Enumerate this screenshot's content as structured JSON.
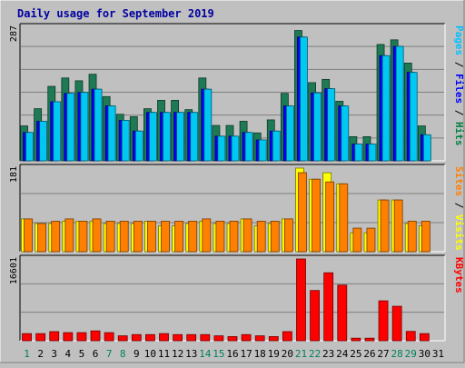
{
  "chart_data": [
    {
      "type": "bar",
      "title": "Daily usage for September 2019",
      "panel": "hits-files-pages",
      "ymax_label": "287",
      "ylim": [
        0,
        287
      ],
      "legend": {
        "side": "right",
        "items": [
          {
            "label": "Pages",
            "color": "#00c0ff"
          },
          {
            "label": "Files",
            "color": "#0000ff"
          },
          {
            "label": "Hits",
            "color": "#008040"
          }
        ],
        "separator": " / "
      },
      "categories": [
        "1",
        "2",
        "3",
        "4",
        "5",
        "6",
        "7",
        "8",
        "9",
        "10",
        "11",
        "12",
        "13",
        "14",
        "15",
        "16",
        "17",
        "18",
        "19",
        "20",
        "21",
        "22",
        "23",
        "24",
        "25",
        "26",
        "27",
        "28",
        "29",
        "30",
        "31"
      ],
      "series": [
        {
          "name": "Hits",
          "color": "#1e7a55",
          "values": [
            75,
            112,
            160,
            178,
            172,
            186,
            138,
            100,
            95,
            112,
            130,
            130,
            110,
            178,
            76,
            76,
            85,
            60,
            88,
            145,
            280,
            168,
            175,
            128,
            52,
            52,
            250,
            260,
            210,
            75,
            0
          ]
        },
        {
          "name": "Files",
          "color": "#0000ff",
          "values": [
            61,
            85,
            127,
            145,
            147,
            154,
            118,
            87,
            64,
            104,
            104,
            104,
            104,
            154,
            53,
            53,
            61,
            45,
            64,
            118,
            266,
            146,
            155,
            118,
            36,
            36,
            226,
            246,
            190,
            56,
            0
          ]
        },
        {
          "name": "Pages",
          "color": "#00c8f0",
          "values": [
            61,
            85,
            127,
            145,
            147,
            154,
            118,
            87,
            64,
            104,
            104,
            104,
            104,
            154,
            53,
            53,
            61,
            45,
            64,
            118,
            266,
            146,
            155,
            118,
            36,
            36,
            226,
            246,
            190,
            56,
            0
          ]
        }
      ]
    },
    {
      "type": "bar",
      "panel": "sites-visits",
      "ymax_label": "181",
      "ylim": [
        0,
        181
      ],
      "legend": {
        "side": "right",
        "items": [
          {
            "label": "Sites",
            "color": "#ff8000"
          },
          {
            "label": "Visits",
            "color": "#ffff00"
          }
        ],
        "separator": " / "
      },
      "categories": [
        "1",
        "2",
        "3",
        "4",
        "5",
        "6",
        "7",
        "8",
        "9",
        "10",
        "11",
        "12",
        "13",
        "14",
        "15",
        "16",
        "17",
        "18",
        "19",
        "20",
        "21",
        "22",
        "23",
        "24",
        "25",
        "26",
        "27",
        "28",
        "29",
        "30",
        "31"
      ],
      "series": [
        {
          "name": "Visits",
          "color": "#ffff00",
          "values": [
            71,
            61,
            61,
            66,
            66,
            66,
            61,
            61,
            61,
            66,
            56,
            56,
            61,
            66,
            61,
            61,
            71,
            56,
            61,
            71,
            181,
            157,
            171,
            147,
            41,
            41,
            112,
            112,
            61,
            56,
            0
          ]
        },
        {
          "name": "Sites",
          "color": "#ff8000",
          "values": [
            71,
            61,
            66,
            71,
            66,
            71,
            66,
            66,
            66,
            66,
            66,
            66,
            66,
            71,
            66,
            66,
            71,
            66,
            66,
            71,
            171,
            157,
            151,
            147,
            51,
            51,
            112,
            112,
            66,
            66,
            0
          ]
        }
      ]
    },
    {
      "type": "bar",
      "panel": "kbytes",
      "ymax_label": "16601",
      "ylim": [
        0,
        16601
      ],
      "legend": {
        "side": "right",
        "items": [
          {
            "label": "KBytes",
            "color": "#ff0000"
          }
        ],
        "separator": ""
      },
      "categories": [
        "1",
        "2",
        "3",
        "4",
        "5",
        "6",
        "7",
        "8",
        "9",
        "10",
        "11",
        "12",
        "13",
        "14",
        "15",
        "16",
        "17",
        "18",
        "19",
        "20",
        "21",
        "22",
        "23",
        "24",
        "25",
        "26",
        "27",
        "28",
        "29",
        "30",
        "31"
      ],
      "series": [
        {
          "name": "KBytes",
          "color": "#ff0000",
          "values": [
            1450,
            1450,
            1850,
            1650,
            1650,
            2000,
            1650,
            1000,
            1250,
            1250,
            1450,
            1250,
            1250,
            1250,
            1000,
            850,
            1250,
            1000,
            850,
            1850,
            16601,
            10200,
            13800,
            11300,
            520,
            520,
            8100,
            7000,
            1900,
            1450,
            0
          ]
        }
      ]
    }
  ],
  "xaxis": {
    "labels": [
      "1",
      "2",
      "3",
      "4",
      "5",
      "6",
      "7",
      "8",
      "9",
      "10",
      "11",
      "12",
      "13",
      "14",
      "15",
      "16",
      "17",
      "18",
      "19",
      "20",
      "21",
      "22",
      "23",
      "24",
      "25",
      "26",
      "27",
      "28",
      "29",
      "30",
      "31"
    ],
    "weekend_days": [
      1,
      7,
      8,
      14,
      15,
      21,
      22,
      28,
      29
    ],
    "weekday_color": "#000000",
    "weekend_color": "#00805c"
  },
  "colors": {
    "background": "#c0c0c0",
    "plot_background": "#c0c0c0",
    "grid": "#808080",
    "title": "#0000a0",
    "frame_dark": "#000000",
    "frame_light": "#ffffff"
  }
}
